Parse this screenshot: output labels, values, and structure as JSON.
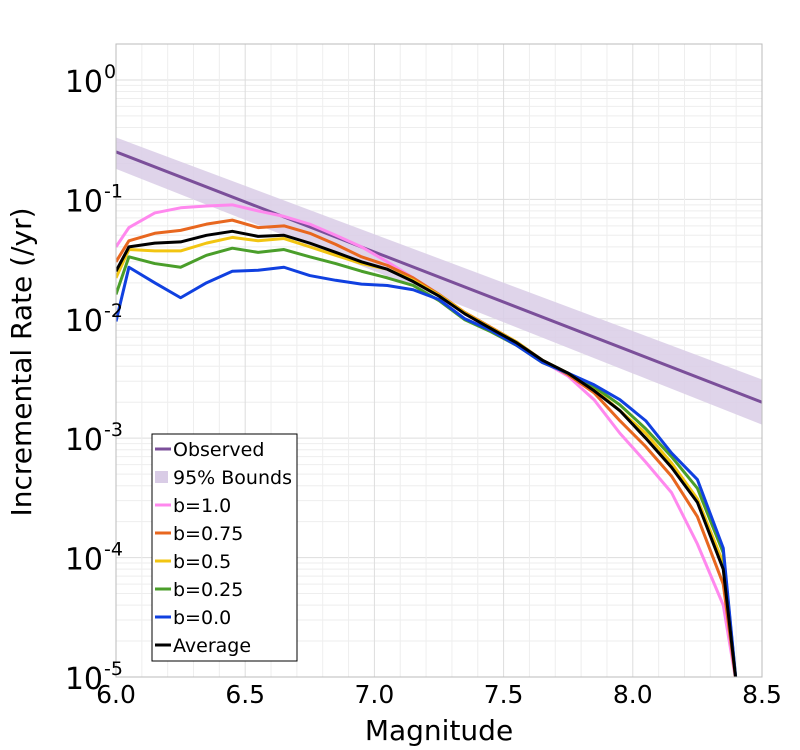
{
  "chart_data": {
    "type": "line",
    "xlabel": "Magnitude",
    "ylabel": "Incremental Rate (/yr)",
    "xlim": [
      6.0,
      8.5
    ],
    "ylim": [
      1e-05,
      2
    ],
    "yscale": "log",
    "grid": true,
    "legend_position": "bottom-left",
    "x_ticks": [
      "6.0",
      "6.5",
      "7.0",
      "7.5",
      "8.0",
      "8.5"
    ],
    "y_ticks": [
      {
        "base": "10",
        "exp": "0"
      },
      {
        "base": "10",
        "exp": "-1"
      },
      {
        "base": "10",
        "exp": "-2"
      },
      {
        "base": "10",
        "exp": "-3"
      },
      {
        "base": "10",
        "exp": "-4"
      },
      {
        "base": "10",
        "exp": "-5"
      }
    ],
    "observed": {
      "name": "Observed",
      "color": "#7b4f9a",
      "x": [
        6.0,
        8.5
      ],
      "y": [
        0.25,
        0.002
      ]
    },
    "bounds": {
      "name": "95% Bounds",
      "color": "#d9cce6",
      "x": [
        6.0,
        8.5
      ],
      "lower": [
        0.18,
        0.0013
      ],
      "upper": [
        0.33,
        0.0031
      ]
    },
    "series": [
      {
        "name": "b=1.0",
        "color": "#ff88ee",
        "x": [
          6.0,
          6.05,
          6.15,
          6.25,
          6.35,
          6.45,
          6.55,
          6.65,
          6.75,
          6.85,
          6.95,
          7.05,
          7.15,
          7.25,
          7.35,
          7.45,
          7.55,
          7.65,
          7.75,
          7.85,
          7.95,
          8.05,
          8.15,
          8.25,
          8.35,
          8.4
        ],
        "y": [
          0.04,
          0.058,
          0.077,
          0.085,
          0.088,
          0.09,
          0.08,
          0.072,
          0.062,
          0.05,
          0.04,
          0.03,
          0.022,
          0.0155,
          0.011,
          0.0082,
          0.0062,
          0.0044,
          0.0033,
          0.0021,
          0.0011,
          0.00063,
          0.00035,
          0.00013,
          4e-05,
          9e-06
        ]
      },
      {
        "name": "b=0.75",
        "color": "#e8671f",
        "x": [
          6.0,
          6.05,
          6.15,
          6.25,
          6.35,
          6.45,
          6.55,
          6.65,
          6.75,
          6.85,
          6.95,
          7.05,
          7.15,
          7.25,
          7.35,
          7.45,
          7.55,
          7.65,
          7.75,
          7.85,
          7.95,
          8.05,
          8.15,
          8.25,
          8.35,
          8.4
        ],
        "y": [
          0.03,
          0.045,
          0.052,
          0.055,
          0.062,
          0.067,
          0.058,
          0.06,
          0.052,
          0.042,
          0.033,
          0.028,
          0.022,
          0.016,
          0.0113,
          0.0085,
          0.0064,
          0.0045,
          0.0034,
          0.0024,
          0.0014,
          0.00085,
          0.00048,
          0.00022,
          6e-05,
          9e-06
        ]
      },
      {
        "name": "b=0.5",
        "color": "#f2c511",
        "x": [
          6.0,
          6.05,
          6.15,
          6.25,
          6.35,
          6.45,
          6.55,
          6.65,
          6.75,
          6.85,
          6.95,
          7.05,
          7.15,
          7.25,
          7.35,
          7.45,
          7.55,
          7.65,
          7.75,
          7.85,
          7.95,
          8.05,
          8.15,
          8.25,
          8.35,
          8.4
        ],
        "y": [
          0.022,
          0.038,
          0.037,
          0.037,
          0.043,
          0.048,
          0.045,
          0.047,
          0.04,
          0.034,
          0.029,
          0.026,
          0.021,
          0.0158,
          0.0112,
          0.0084,
          0.0064,
          0.0045,
          0.0035,
          0.0026,
          0.0017,
          0.0011,
          0.00062,
          0.00031,
          9e-05,
          9e-06
        ]
      },
      {
        "name": "b=0.25",
        "color": "#4a9e2a",
        "x": [
          6.0,
          6.05,
          6.15,
          6.25,
          6.35,
          6.45,
          6.55,
          6.65,
          6.75,
          6.85,
          6.95,
          7.05,
          7.15,
          7.25,
          7.35,
          7.45,
          7.55,
          7.65,
          7.75,
          7.85,
          7.95,
          8.05,
          8.15,
          8.25,
          8.35,
          8.4
        ],
        "y": [
          0.016,
          0.033,
          0.029,
          0.027,
          0.034,
          0.039,
          0.036,
          0.038,
          0.033,
          0.029,
          0.025,
          0.022,
          0.019,
          0.0142,
          0.0098,
          0.0078,
          0.006,
          0.0043,
          0.0035,
          0.0027,
          0.0019,
          0.0012,
          0.0007,
          0.00038,
          0.00011,
          9e-06
        ]
      },
      {
        "name": "b=0.0",
        "color": "#1040e0",
        "x": [
          6.0,
          6.05,
          6.15,
          6.25,
          6.35,
          6.45,
          6.55,
          6.65,
          6.75,
          6.85,
          6.95,
          7.05,
          7.15,
          7.25,
          7.35,
          7.45,
          7.55,
          7.65,
          7.75,
          7.85,
          7.95,
          8.05,
          8.15,
          8.25,
          8.35,
          8.4
        ],
        "y": [
          0.0095,
          0.027,
          0.02,
          0.015,
          0.02,
          0.025,
          0.0255,
          0.027,
          0.023,
          0.021,
          0.0195,
          0.019,
          0.0175,
          0.0145,
          0.01,
          0.008,
          0.006,
          0.0043,
          0.0035,
          0.0028,
          0.0021,
          0.0014,
          0.00075,
          0.00045,
          0.00012,
          9e-06
        ]
      },
      {
        "name": "Average",
        "color": "#000000",
        "x": [
          6.0,
          6.05,
          6.15,
          6.25,
          6.35,
          6.45,
          6.55,
          6.65,
          6.75,
          6.85,
          6.95,
          7.05,
          7.15,
          7.25,
          7.35,
          7.45,
          7.55,
          7.65,
          7.75,
          7.85,
          7.95,
          8.05,
          8.15,
          8.25,
          8.35,
          8.4
        ],
        "y": [
          0.025,
          0.04,
          0.043,
          0.044,
          0.05,
          0.054,
          0.049,
          0.05,
          0.043,
          0.036,
          0.03,
          0.026,
          0.0205,
          0.0155,
          0.011,
          0.0083,
          0.0063,
          0.0045,
          0.0035,
          0.0025,
          0.0017,
          0.001,
          0.00057,
          0.00029,
          8e-05,
          9e-06
        ]
      }
    ],
    "legend": [
      "Observed",
      "95% Bounds",
      "b=1.0",
      "b=0.75",
      "b=0.5",
      "b=0.25",
      "b=0.0",
      "Average"
    ]
  }
}
